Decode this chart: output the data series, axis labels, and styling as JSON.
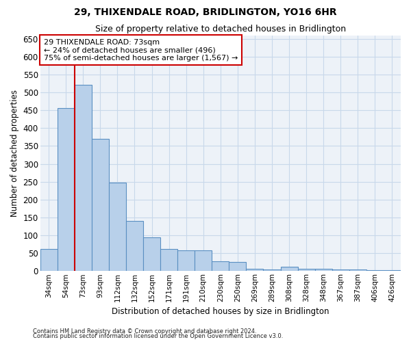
{
  "title": "29, THIXENDALE ROAD, BRIDLINGTON, YO16 6HR",
  "subtitle": "Size of property relative to detached houses in Bridlington",
  "xlabel": "Distribution of detached houses by size in Bridlington",
  "ylabel": "Number of detached properties",
  "categories": [
    "34sqm",
    "54sqm",
    "73sqm",
    "93sqm",
    "112sqm",
    "132sqm",
    "152sqm",
    "171sqm",
    "191sqm",
    "210sqm",
    "230sqm",
    "250sqm",
    "269sqm",
    "289sqm",
    "308sqm",
    "328sqm",
    "348sqm",
    "367sqm",
    "387sqm",
    "406sqm",
    "426sqm"
  ],
  "values": [
    62,
    457,
    521,
    370,
    248,
    140,
    95,
    61,
    58,
    57,
    27,
    25,
    7,
    5,
    12,
    6,
    6,
    5,
    4,
    3,
    3
  ],
  "bar_color": "#b8d0ea",
  "bar_edge_color": "#5a8fc2",
  "highlight_index": 2,
  "highlight_line_color": "#cc0000",
  "annotation_text": "29 THIXENDALE ROAD: 73sqm\n← 24% of detached houses are smaller (496)\n75% of semi-detached houses are larger (1,567) →",
  "annotation_box_color": "#cc0000",
  "ylim": [
    0,
    660
  ],
  "yticks": [
    0,
    50,
    100,
    150,
    200,
    250,
    300,
    350,
    400,
    450,
    500,
    550,
    600,
    650
  ],
  "grid_color": "#c8d8ea",
  "background_color": "#edf2f8",
  "footer_line1": "Contains HM Land Registry data © Crown copyright and database right 2024.",
  "footer_line2": "Contains public sector information licensed under the Open Government Licence v3.0."
}
